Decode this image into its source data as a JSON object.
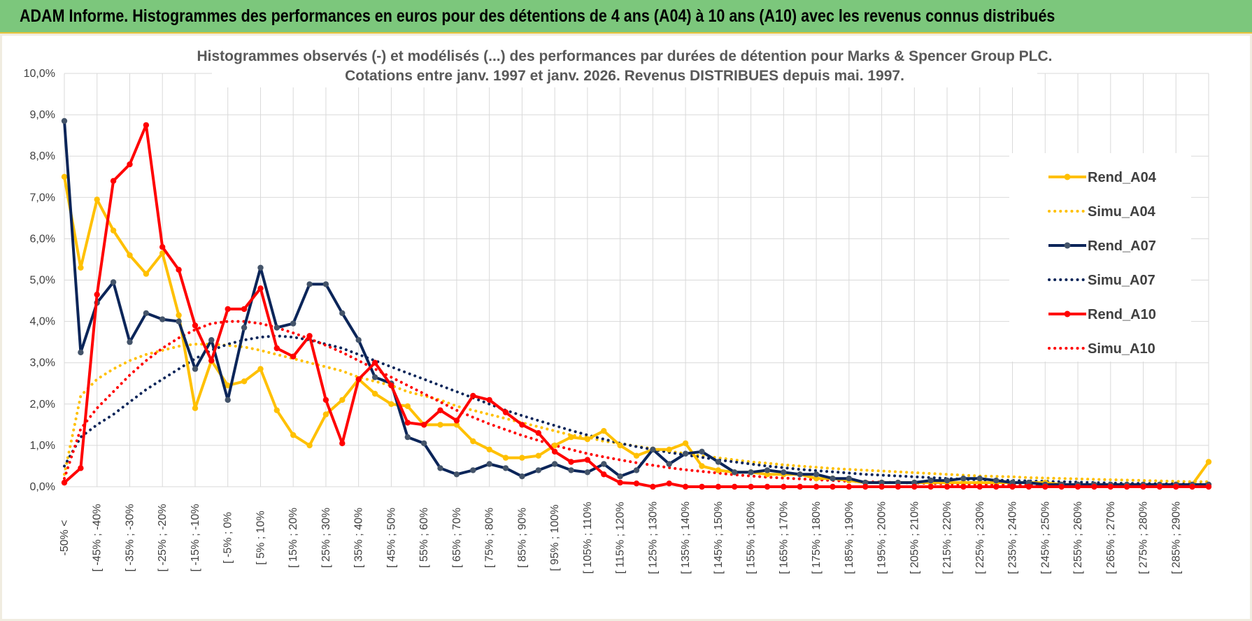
{
  "banner": {
    "title": "ADAM Informe. Histogrammes des performances en euros pour des détentions de 4 ans (A04) à 10 ans (A10) avec les revenus connus distribués"
  },
  "colors": {
    "banner_bg": "#7cc77c",
    "A04": "#ffc000",
    "A07": "#0b2559",
    "A10": "#ff0000",
    "grid": "#d9d9d9"
  },
  "chart_data": {
    "type": "line",
    "title": "Histogrammes observés (-) et modélisés (...) des performances par durées de détention pour Marks & Spencer Group PLC.",
    "subtitle": "Cotations entre janv. 1997 et janv. 2026. Revenus DISTRIBUES depuis mai. 1997.",
    "xlabel": "",
    "ylabel": "",
    "ylim": [
      0,
      10
    ],
    "y_ticks": [
      "0,0%",
      "1,0%",
      "2,0%",
      "3,0%",
      "4,0%",
      "5,0%",
      "6,0%",
      "7,0%",
      "8,0%",
      "9,0%",
      "10,0%"
    ],
    "legend_position": "right",
    "grid": true,
    "x_tick_labels": [
      "-50% <",
      "[ -45% ; -40%",
      "[ -35% ; -30%",
      "[ -25% ; -20%",
      "[ -15% ; -10%",
      "[ -5% ; 0%",
      "[ 5% ; 10%",
      "[ 15% ; 20%",
      "[ 25% ; 30%",
      "[ 35% ; 40%",
      "[ 45% ; 50%",
      "[ 55% ; 60%",
      "[ 65% ; 70%",
      "[ 75% ; 80%",
      "[ 85% ; 90%",
      "[ 95% ; 100%",
      "[ 105% ; 110%",
      "[ 115% ; 120%",
      "[ 125% ; 130%",
      "[ 135% ; 140%",
      "[ 145% ; 150%",
      "[ 155% ; 160%",
      "[ 165% ; 170%",
      "[ 175% ; 180%",
      "[ 185% ; 190%",
      "[ 195% ; 200%",
      "[ 205% ; 210%",
      "[ 215% ; 220%",
      "[ 225% ; 230%",
      "[ 235% ; 240%",
      "[ 245% ; 250%",
      "[ 255% ; 260%",
      "[ 265% ; 270%",
      "[ 275% ; 280%",
      "[ 285% ; 290%"
    ],
    "series": [
      {
        "name": "Rend_A04",
        "style": "solid",
        "color": "#ffc000",
        "values": [
          7.5,
          5.3,
          6.95,
          6.2,
          5.6,
          5.15,
          5.65,
          4.15,
          1.9,
          3.05,
          2.45,
          2.55,
          2.85,
          1.85,
          1.25,
          1.0,
          1.75,
          2.1,
          2.6,
          2.25,
          2.0,
          1.95,
          1.5,
          1.5,
          1.5,
          1.1,
          0.9,
          0.7,
          0.7,
          0.75,
          1.0,
          1.2,
          1.15,
          1.35,
          1.0,
          0.75,
          0.9,
          0.9,
          1.05,
          0.5,
          0.4,
          0.35,
          0.35,
          0.3,
          0.3,
          0.3,
          0.2,
          0.2,
          0.15,
          0.1,
          0.1,
          0.1,
          0.1,
          0.1,
          0.1,
          0.1,
          0.1,
          0.1,
          0.1,
          0.1,
          0.1,
          0.05,
          0.05,
          0.05,
          0.05,
          0.05,
          0.05,
          0.05,
          0.05,
          0.05,
          0.6
        ]
      },
      {
        "name": "Simu_A04",
        "style": "dotted",
        "color": "#ffc000",
        "values": [
          0.3,
          2.2,
          2.6,
          2.85,
          3.05,
          3.2,
          3.3,
          3.4,
          3.45,
          3.45,
          3.42,
          3.38,
          3.3,
          3.2,
          3.1,
          3.0,
          2.9,
          2.8,
          2.65,
          2.55,
          2.45,
          2.3,
          2.2,
          2.1,
          1.95,
          1.85,
          1.75,
          1.65,
          1.55,
          1.45,
          1.35,
          1.25,
          1.2,
          1.1,
          1.05,
          0.98,
          0.92,
          0.86,
          0.8,
          0.75,
          0.7,
          0.65,
          0.6,
          0.57,
          0.53,
          0.5,
          0.47,
          0.44,
          0.42,
          0.4,
          0.38,
          0.36,
          0.34,
          0.32,
          0.3,
          0.28,
          0.26,
          0.25,
          0.24,
          0.22,
          0.21,
          0.2,
          0.19,
          0.18,
          0.17,
          0.16,
          0.15,
          0.14,
          0.13,
          0.12,
          0.12
        ]
      },
      {
        "name": "Rend_A07",
        "style": "solid",
        "color": "#0b2559",
        "values": [
          8.85,
          3.25,
          4.45,
          4.95,
          3.5,
          4.2,
          4.05,
          4.0,
          2.85,
          3.55,
          2.1,
          3.85,
          5.3,
          3.85,
          3.95,
          4.9,
          4.9,
          4.2,
          3.55,
          2.65,
          2.5,
          1.2,
          1.05,
          0.45,
          0.3,
          0.4,
          0.55,
          0.45,
          0.25,
          0.4,
          0.55,
          0.4,
          0.35,
          0.55,
          0.25,
          0.4,
          0.9,
          0.55,
          0.8,
          0.85,
          0.6,
          0.35,
          0.35,
          0.4,
          0.35,
          0.3,
          0.3,
          0.2,
          0.2,
          0.1,
          0.1,
          0.1,
          0.1,
          0.15,
          0.15,
          0.2,
          0.2,
          0.15,
          0.1,
          0.1,
          0.05,
          0.05,
          0.05,
          0.05,
          0.05,
          0.05,
          0.05,
          0.05,
          0.05,
          0.05,
          0.05
        ]
      },
      {
        "name": "Simu_A07",
        "style": "dotted",
        "color": "#0b2559",
        "values": [
          0.5,
          1.2,
          1.5,
          1.75,
          2.05,
          2.35,
          2.6,
          2.85,
          3.1,
          3.3,
          3.45,
          3.55,
          3.62,
          3.65,
          3.62,
          3.55,
          3.45,
          3.35,
          3.2,
          3.05,
          2.9,
          2.75,
          2.6,
          2.45,
          2.3,
          2.15,
          2.0,
          1.85,
          1.72,
          1.6,
          1.48,
          1.36,
          1.25,
          1.15,
          1.05,
          0.97,
          0.9,
          0.83,
          0.77,
          0.71,
          0.65,
          0.6,
          0.55,
          0.5,
          0.46,
          0.42,
          0.39,
          0.36,
          0.33,
          0.3,
          0.28,
          0.26,
          0.24,
          0.22,
          0.2,
          0.18,
          0.17,
          0.16,
          0.15,
          0.14,
          0.13,
          0.12,
          0.11,
          0.1,
          0.09,
          0.08,
          0.08,
          0.07,
          0.07,
          0.06,
          0.06
        ]
      },
      {
        "name": "Rend_A10",
        "style": "solid",
        "color": "#ff0000",
        "values": [
          0.1,
          0.45,
          4.65,
          7.4,
          7.8,
          8.75,
          5.8,
          5.25,
          3.9,
          3.05,
          4.3,
          4.3,
          4.8,
          3.35,
          3.15,
          3.65,
          2.1,
          1.05,
          2.6,
          3.0,
          2.45,
          1.55,
          1.5,
          1.85,
          1.6,
          2.2,
          2.1,
          1.8,
          1.5,
          1.3,
          0.85,
          0.6,
          0.65,
          0.3,
          0.1,
          0.08,
          0.0,
          0.08,
          0.0,
          0.0,
          0.0,
          0.0,
          0.0,
          0.0,
          0.0,
          0.0,
          0.0,
          0.0,
          0.0,
          0.0,
          0.0,
          0.0,
          0.0,
          0.0,
          0.0,
          0.0,
          0.0,
          0.0,
          0.0,
          0.0,
          0.0,
          0.0,
          0.0,
          0.0,
          0.0,
          0.0,
          0.0,
          0.0,
          0.0,
          0.0,
          0.0
        ]
      },
      {
        "name": "Simu_A10",
        "style": "dotted",
        "color": "#ff0000",
        "values": [
          0.2,
          1.4,
          1.9,
          2.3,
          2.7,
          3.05,
          3.35,
          3.6,
          3.8,
          3.95,
          4.0,
          4.0,
          3.95,
          3.85,
          3.72,
          3.58,
          3.42,
          3.25,
          3.05,
          2.85,
          2.65,
          2.45,
          2.25,
          2.05,
          1.85,
          1.68,
          1.52,
          1.38,
          1.24,
          1.12,
          1.0,
          0.9,
          0.8,
          0.72,
          0.65,
          0.58,
          0.52,
          0.46,
          0.41,
          0.37,
          0.33,
          0.29,
          0.26,
          0.23,
          0.21,
          0.19,
          0.17,
          0.15,
          0.13,
          0.12,
          0.11,
          0.1,
          0.09,
          0.08,
          0.07,
          0.06,
          0.06,
          0.05,
          0.05,
          0.04,
          0.04,
          0.04,
          0.03,
          0.03,
          0.03,
          0.03,
          0.02,
          0.02,
          0.02,
          0.02,
          0.02
        ]
      }
    ]
  }
}
